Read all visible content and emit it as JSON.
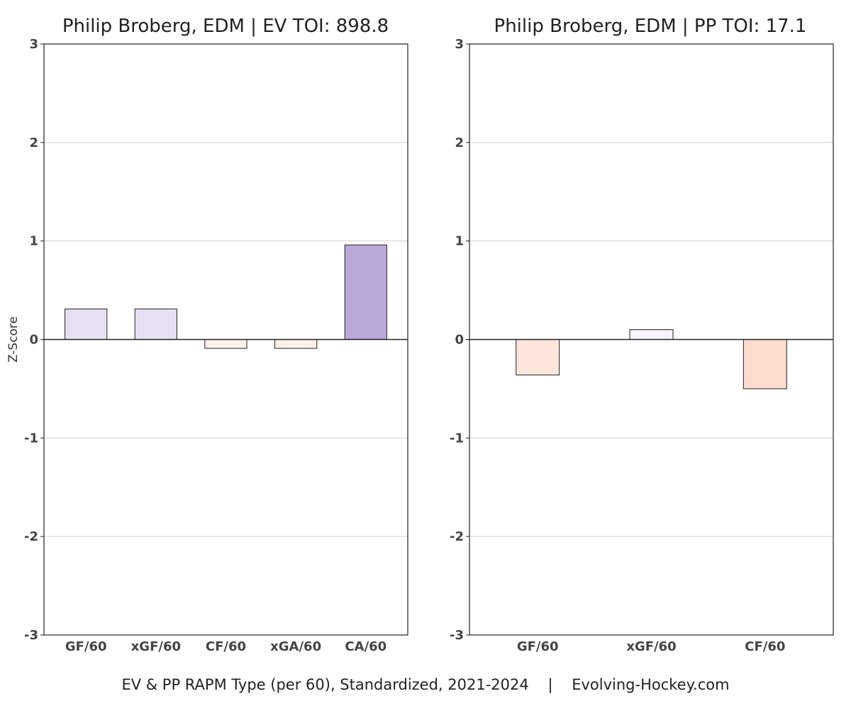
{
  "chart_data": [
    {
      "type": "bar",
      "title": "Philip Broberg, EDM  |  EV TOI: 898.8",
      "ylabel": "Z-Score",
      "ylim": [
        -3,
        3
      ],
      "yticks": [
        -3,
        -2,
        -1,
        0,
        1,
        2,
        3
      ],
      "grid": "horizontal",
      "categories": [
        "GF/60",
        "xGF/60",
        "CF/60",
        "xGA/60",
        "CA/60"
      ],
      "values": [
        0.31,
        0.31,
        -0.09,
        -0.09,
        0.96
      ],
      "colors": [
        "#e6e1f1",
        "#e6e1f1",
        "#fef1ec",
        "#fef1ec",
        "#baa9d8"
      ]
    },
    {
      "type": "bar",
      "title": "Philip Broberg, EDM  |  PP TOI: 17.1",
      "ylabel": "",
      "ylim": [
        -3,
        3
      ],
      "yticks": [
        -3,
        -2,
        -1,
        0,
        1,
        2,
        3
      ],
      "grid": "horizontal",
      "categories": [
        "GF/60",
        "xGF/60",
        "CF/60"
      ],
      "values": [
        -0.36,
        0.1,
        -0.5
      ],
      "colors": [
        "#fee6dd",
        "#f6f4fa",
        "#fddbcf"
      ]
    }
  ],
  "caption": "EV & PP RAPM Type (per 60), Standardized, 2021-2024    |    Evolving-Hockey.com"
}
